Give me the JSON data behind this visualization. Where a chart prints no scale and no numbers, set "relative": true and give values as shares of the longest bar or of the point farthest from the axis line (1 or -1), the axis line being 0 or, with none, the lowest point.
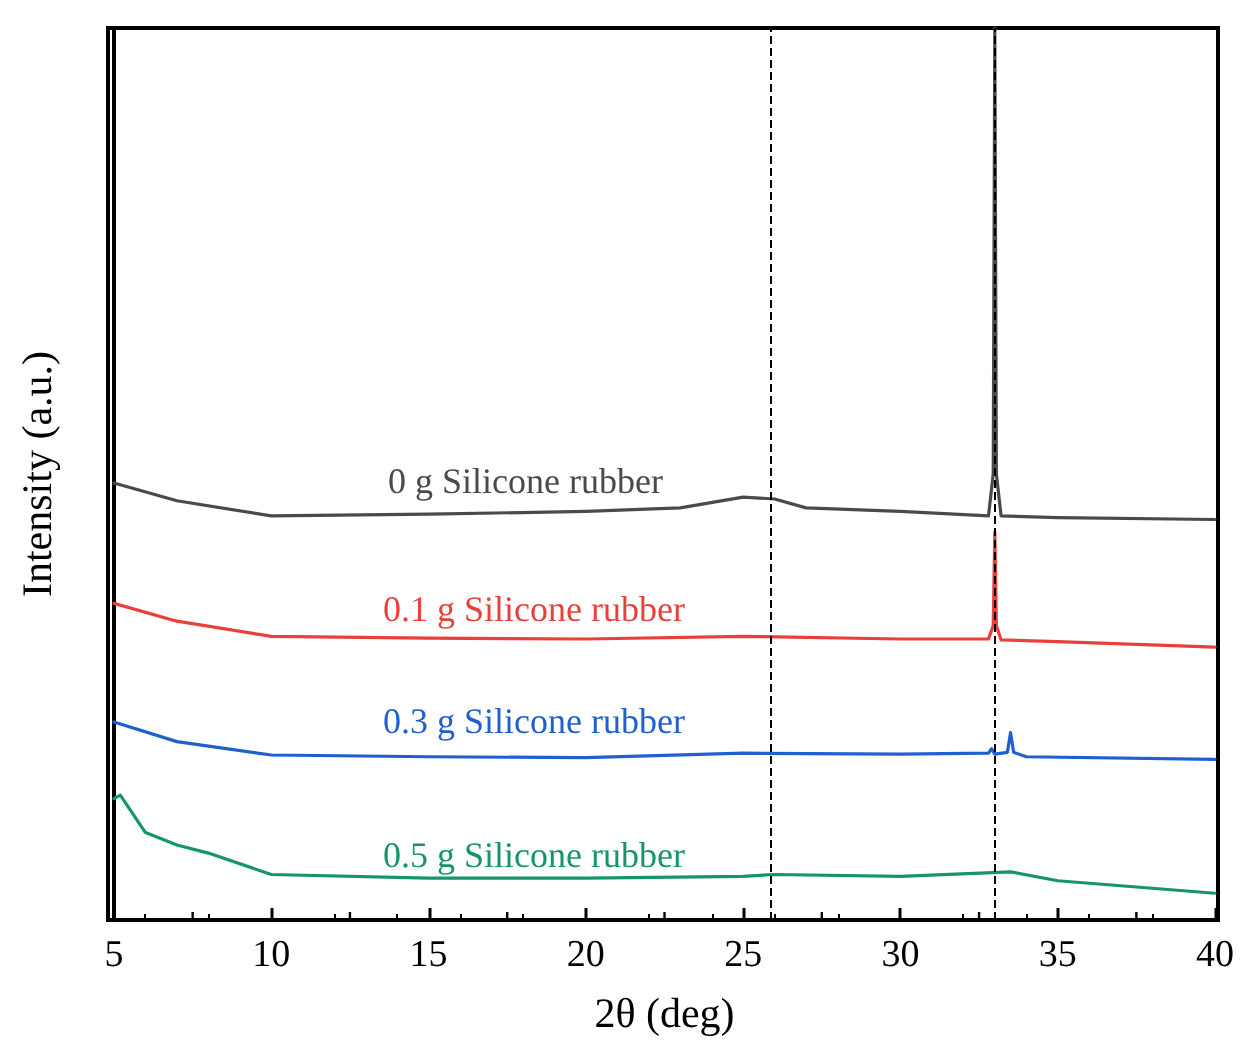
{
  "chart_data": {
    "type": "line",
    "relative": true,
    "xlabel": "2θ (deg)",
    "ylabel": "Intensity (a.u.)",
    "xlim": [
      5,
      40
    ],
    "xticks": [
      5,
      10,
      15,
      20,
      25,
      30,
      35,
      40
    ],
    "tick_labels": "x",
    "grid": false,
    "legend": false,
    "marker": "none",
    "line_style": "solid",
    "ref_lines": [
      {
        "axis": "x",
        "value": 25.9,
        "color": "#000000",
        "line_style": "dashed"
      },
      {
        "axis": "x",
        "value": 33.0,
        "color": "#000000",
        "line_style": "dashed"
      }
    ],
    "series": [
      {
        "name": "0 g Silicone rubber",
        "color": "#4a4a4a",
        "x": [
          5,
          7,
          10,
          15,
          20,
          23,
          25,
          26,
          27,
          30,
          32.8,
          32.95,
          33.0,
          33.05,
          33.2,
          35,
          40
        ],
        "values": [
          0.49,
          0.47,
          0.453,
          0.455,
          0.458,
          0.462,
          0.474,
          0.472,
          0.462,
          0.458,
          0.453,
          0.5,
          1,
          0.5,
          0.453,
          0.451,
          0.449
        ]
      },
      {
        "name": "0.1 g Silicone rubber",
        "color": "#e8413c",
        "x": [
          5,
          7,
          10,
          15,
          20,
          25,
          30,
          32.8,
          32.95,
          33.0,
          33.05,
          33.2,
          35,
          40
        ],
        "values": [
          0.355,
          0.335,
          0.318,
          0.316,
          0.315,
          0.318,
          0.315,
          0.315,
          0.33,
          0.435,
          0.33,
          0.314,
          0.312,
          0.306
        ]
      },
      {
        "name": "0.3 g Silicone rubber",
        "color": "#1f5fd0",
        "x": [
          5,
          7,
          10,
          15,
          20,
          25,
          30,
          32.8,
          32.9,
          33.0,
          33.4,
          33.5,
          33.6,
          34,
          40
        ],
        "values": [
          0.222,
          0.2,
          0.185,
          0.183,
          0.182,
          0.187,
          0.186,
          0.187,
          0.192,
          0.186,
          0.188,
          0.21,
          0.188,
          0.183,
          0.18
        ]
      },
      {
        "name": "0.5 g Silicone rubber",
        "color": "#17956a",
        "x": [
          5,
          5.2,
          6,
          7,
          8,
          10,
          15,
          20,
          25,
          26,
          30,
          33.5,
          35,
          40
        ],
        "values": [
          0.136,
          0.14,
          0.098,
          0.084,
          0.075,
          0.051,
          0.047,
          0.047,
          0.049,
          0.051,
          0.049,
          0.054,
          0.044,
          0.03
        ]
      }
    ]
  }
}
